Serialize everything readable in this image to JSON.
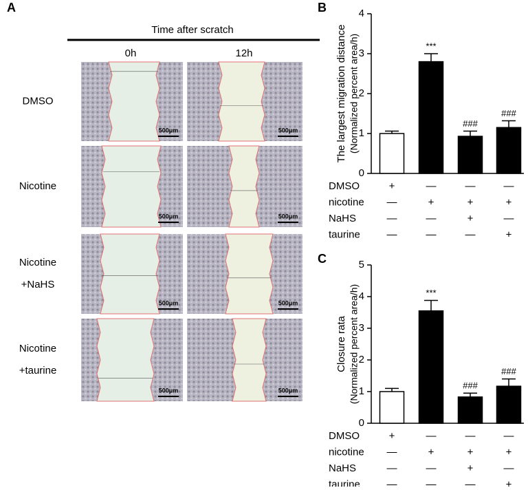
{
  "panel_a": {
    "label": "A",
    "header": "Time after scratch",
    "columns": [
      "0h",
      "12h"
    ],
    "rows": [
      [
        "DMSO"
      ],
      [
        "Nicotine"
      ],
      [
        "Nicotine",
        "+NaHS"
      ],
      [
        "Nicotine",
        "+taurine"
      ]
    ],
    "scale_bar": "500μm"
  },
  "chart_data": [
    {
      "type": "bar",
      "panel": "B",
      "y_label": [
        "The largest migration distance",
        "(Normalized percent area/h)"
      ],
      "values": [
        1.0,
        2.8,
        0.93,
        1.15
      ],
      "errors": [
        0.06,
        0.2,
        0.13,
        0.17
      ],
      "colors": [
        "#ffffff",
        "#000000",
        "#000000",
        "#000000"
      ],
      "significance": [
        null,
        "***",
        "###",
        "###"
      ],
      "ylim": [
        0,
        4
      ],
      "yticks": [
        0,
        1,
        2,
        3,
        4
      ],
      "treatments": [
        {
          "name": "DMSO",
          "marks": [
            "+",
            "—",
            "—",
            "—"
          ]
        },
        {
          "name": "nicotine",
          "marks": [
            "—",
            "+",
            "+",
            "+"
          ]
        },
        {
          "name": "NaHS",
          "marks": [
            "—",
            "—",
            "+",
            "—"
          ]
        },
        {
          "name": "taurine",
          "marks": [
            "—",
            "—",
            "—",
            "+"
          ]
        }
      ]
    },
    {
      "type": "bar",
      "panel": "C",
      "y_label": [
        "Closure rata",
        "(Normalized percent area/h)"
      ],
      "values": [
        1.0,
        3.55,
        0.83,
        1.17
      ],
      "errors": [
        0.1,
        0.33,
        0.12,
        0.23
      ],
      "colors": [
        "#ffffff",
        "#000000",
        "#000000",
        "#000000"
      ],
      "significance": [
        null,
        "***",
        "###",
        "###"
      ],
      "ylim": [
        0,
        5
      ],
      "yticks": [
        0,
        1,
        2,
        3,
        4,
        5
      ],
      "treatments": [
        {
          "name": "DMSO",
          "marks": [
            "+",
            "—",
            "—",
            "—"
          ]
        },
        {
          "name": "nicotine",
          "marks": [
            "—",
            "+",
            "+",
            "+"
          ]
        },
        {
          "name": "NaHS",
          "marks": [
            "—",
            "—",
            "+",
            "—"
          ]
        },
        {
          "name": "taurine",
          "marks": [
            "—",
            "—",
            "—",
            "+"
          ]
        }
      ]
    }
  ]
}
